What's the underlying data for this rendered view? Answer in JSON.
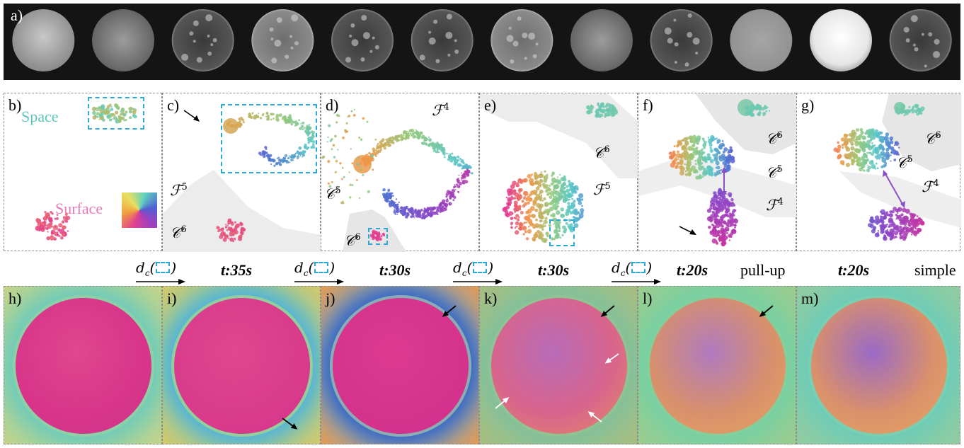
{
  "row_a": {
    "label": "a)",
    "suns": [
      {
        "name": "sun-image-1",
        "style": "smooth-light"
      },
      {
        "name": "sun-image-2",
        "style": "grainy"
      },
      {
        "name": "sun-image-3",
        "style": "corona-dark"
      },
      {
        "name": "sun-image-4",
        "style": "corona-bright"
      },
      {
        "name": "sun-image-5",
        "style": "corona-dark"
      },
      {
        "name": "sun-image-6",
        "style": "corona-dark"
      },
      {
        "name": "sun-image-7",
        "style": "corona-bright"
      },
      {
        "name": "sun-image-8",
        "style": "grainy-dim"
      },
      {
        "name": "sun-image-9",
        "style": "grainy-dark"
      },
      {
        "name": "sun-image-10",
        "style": "magnetogram"
      },
      {
        "name": "sun-image-11",
        "style": "smooth-bright"
      },
      {
        "name": "sun-image-12",
        "style": "corona-dark"
      }
    ]
  },
  "row_b": {
    "panels": [
      {
        "label": "b)",
        "space_label": "Space",
        "surface_label": "Surface"
      },
      {
        "label": "c)",
        "f_label": "ℱ",
        "f_sup": "5",
        "c_label": "𝒞",
        "c_sup": "6"
      },
      {
        "label": "d)",
        "f_label": "ℱ",
        "f_sup": "4",
        "c5_label": "𝒞",
        "c5_sup": "5",
        "c6_label": "𝒞",
        "c6_sup": "6"
      },
      {
        "label": "e)",
        "c_label": "𝒞",
        "c_sup": "6",
        "f_label": "ℱ",
        "f_sup": "5"
      },
      {
        "label": "f)",
        "c6_label": "𝒞",
        "c6_sup": "6",
        "c5_label": "𝒞",
        "c5_sup": "5",
        "f_label": "ℱ",
        "f_sup": "4"
      },
      {
        "label": "g)",
        "c6_label": "𝒞",
        "c6_sup": "6",
        "c5_label": "𝒞",
        "c5_sup": "5",
        "f_label": "ℱ",
        "f_sup": "4"
      }
    ]
  },
  "captions": {
    "dc_symbol": "d",
    "dc_sub": "c",
    "times": [
      "t:35s",
      "t:30s",
      "t:30s",
      "t:20s",
      "t:20s"
    ],
    "pull_up": "pull-up",
    "simple": "simple"
  },
  "row_c": {
    "panels": [
      {
        "label": "h)"
      },
      {
        "label": "i)"
      },
      {
        "label": "j)"
      },
      {
        "label": "k)"
      },
      {
        "label": "l)"
      },
      {
        "label": "m)"
      }
    ]
  },
  "colors": {
    "accent_dashed": "#2aa9d8",
    "space_text": "#5cc6bd",
    "surface_text": "#e67ab8",
    "magenta": "#e23a8f",
    "teal": "#6fcfc2",
    "purple": "#7b50c4"
  }
}
